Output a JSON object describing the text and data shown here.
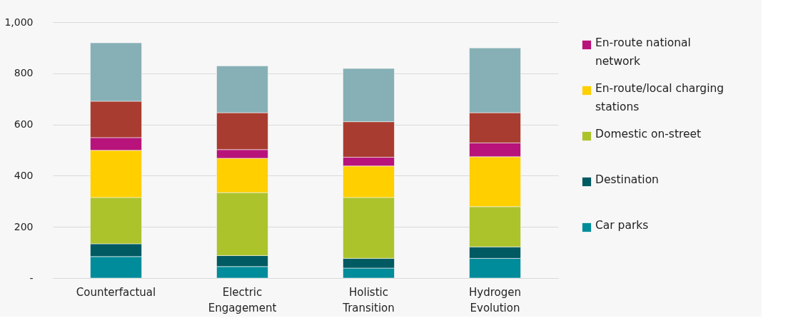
{
  "chart_data": {
    "type": "bar",
    "stacked": true,
    "categories": [
      "Counterfactual",
      "Electric Engagement",
      "Holistic Transition",
      "Hydrogen Evolution"
    ],
    "series": [
      {
        "name": "Car parks",
        "color": "#008c9a",
        "values": [
          84,
          45,
          39,
          77
        ]
      },
      {
        "name": "Destination",
        "color": "#005a62",
        "values": [
          50,
          43,
          38,
          45
        ]
      },
      {
        "name": "Domestic on-street",
        "color": "#acc32c",
        "values": [
          181,
          246,
          238,
          157
        ]
      },
      {
        "name": "En-route/local charging stations",
        "color": "#ffcf00",
        "values": [
          184,
          134,
          123,
          195
        ]
      },
      {
        "name": "En-route national network",
        "color": "#b8137a",
        "values": [
          50,
          34,
          34,
          54
        ]
      },
      {
        "color": "#a93c30",
        "values": [
          142,
          144,
          139,
          118
        ]
      },
      {
        "color": "#86b0b6",
        "values": [
          228,
          183,
          208,
          253
        ]
      }
    ],
    "ylim": [
      0,
      1000
    ],
    "yticks": [
      {
        "value": 0,
        "label": "-"
      },
      200,
      400,
      600,
      800,
      {
        "value": 1000,
        "label": "1,000"
      }
    ],
    "grid": "y",
    "legend": "right"
  }
}
